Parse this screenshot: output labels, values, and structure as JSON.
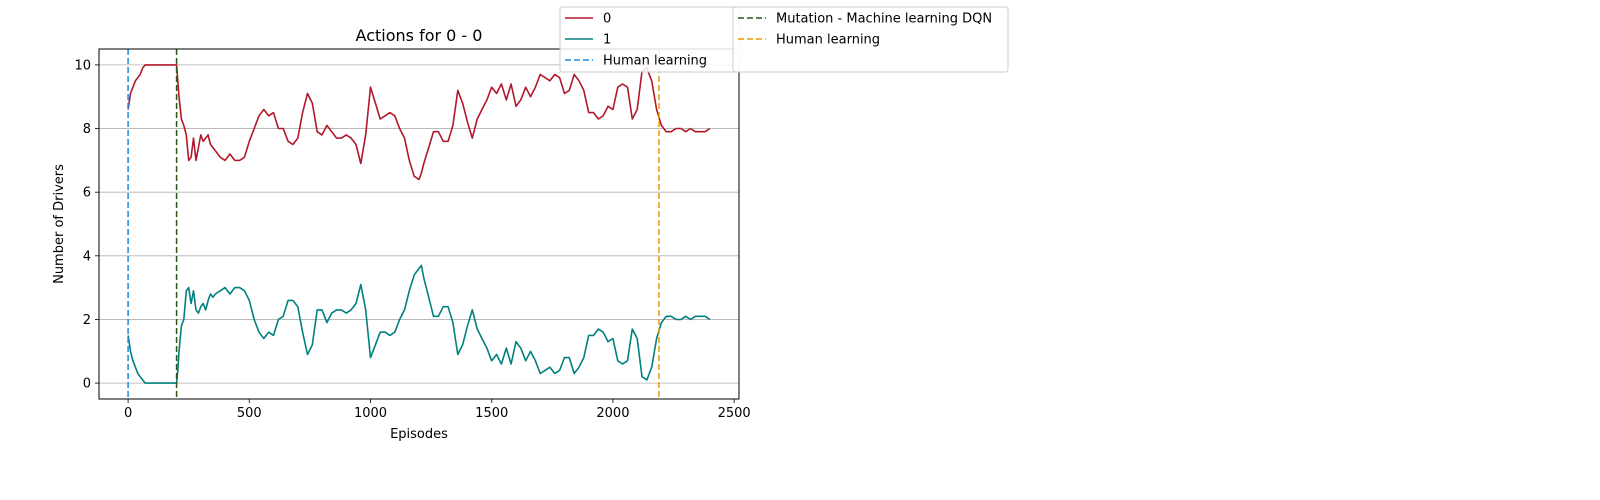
{
  "chart_data": {
    "type": "line",
    "title": "Actions for 0 - 0",
    "xlabel": "Episodes",
    "ylabel": "Number of Drivers",
    "xlim": [
      -120,
      2520
    ],
    "ylim": [
      -0.5,
      10.5
    ],
    "xticks": [
      0,
      500,
      1000,
      1500,
      2000,
      2500
    ],
    "yticks": [
      0,
      2,
      4,
      6,
      8,
      10
    ],
    "grid": "horizontal",
    "legend_placement": "top-right",
    "series": [
      {
        "name": "0",
        "color": "#b2182b",
        "x": [
          0,
          10,
          20,
          30,
          40,
          50,
          60,
          70,
          80,
          100,
          150,
          195,
          200,
          205,
          210,
          220,
          230,
          240,
          250,
          260,
          270,
          280,
          290,
          300,
          310,
          320,
          330,
          340,
          350,
          360,
          380,
          400,
          420,
          440,
          460,
          480,
          500,
          520,
          540,
          560,
          580,
          600,
          620,
          640,
          660,
          680,
          700,
          720,
          740,
          760,
          780,
          800,
          820,
          840,
          860,
          880,
          900,
          920,
          940,
          960,
          980,
          1000,
          1020,
          1040,
          1060,
          1080,
          1100,
          1120,
          1140,
          1160,
          1180,
          1200,
          1210,
          1220,
          1240,
          1260,
          1280,
          1300,
          1320,
          1340,
          1360,
          1380,
          1400,
          1420,
          1440,
          1460,
          1480,
          1500,
          1520,
          1540,
          1560,
          1580,
          1600,
          1620,
          1640,
          1660,
          1680,
          1700,
          1720,
          1740,
          1760,
          1780,
          1800,
          1820,
          1840,
          1860,
          1880,
          1900,
          1920,
          1940,
          1960,
          1980,
          2000,
          2020,
          2040,
          2060,
          2080,
          2100,
          2120,
          2140,
          2160,
          2180,
          2200,
          2220,
          2240,
          2260,
          2280,
          2300,
          2320,
          2340,
          2360,
          2380,
          2400
        ],
        "values": [
          8.6,
          9.1,
          9.3,
          9.5,
          9.6,
          9.7,
          9.9,
          10.0,
          10.0,
          10.0,
          10.0,
          10.0,
          10.0,
          9.5,
          9.0,
          8.3,
          8.1,
          7.8,
          7.0,
          7.1,
          7.7,
          7.0,
          7.4,
          7.8,
          7.6,
          7.7,
          7.8,
          7.5,
          7.4,
          7.3,
          7.1,
          7.0,
          7.2,
          7.0,
          7.0,
          7.1,
          7.6,
          8.0,
          8.4,
          8.6,
          8.4,
          8.5,
          8.0,
          8.0,
          7.6,
          7.5,
          7.7,
          8.5,
          9.1,
          8.8,
          7.9,
          7.8,
          8.1,
          7.9,
          7.7,
          7.7,
          7.8,
          7.7,
          7.5,
          6.9,
          7.8,
          9.3,
          8.8,
          8.3,
          8.4,
          8.5,
          8.4,
          8.0,
          7.7,
          7.0,
          6.5,
          6.4,
          6.6,
          6.9,
          7.4,
          7.9,
          7.9,
          7.6,
          7.6,
          8.1,
          9.2,
          8.8,
          8.2,
          7.7,
          8.3,
          8.6,
          8.9,
          9.3,
          9.1,
          9.4,
          8.9,
          9.4,
          8.7,
          8.9,
          9.3,
          9.0,
          9.3,
          9.7,
          9.6,
          9.5,
          9.7,
          9.6,
          9.1,
          9.2,
          9.7,
          9.5,
          9.2,
          8.5,
          8.5,
          8.3,
          8.4,
          8.7,
          8.6,
          9.3,
          9.4,
          9.3,
          8.3,
          8.6,
          9.8,
          9.9,
          9.5,
          8.6,
          8.1,
          7.9,
          7.9,
          8.0,
          8.0,
          7.9,
          8.0,
          7.9,
          7.9,
          7.9,
          8.0
        ]
      },
      {
        "name": "1",
        "color": "#00817f",
        "x": [
          0,
          10,
          20,
          30,
          40,
          50,
          60,
          70,
          80,
          100,
          150,
          195,
          200,
          205,
          210,
          220,
          230,
          240,
          250,
          260,
          270,
          280,
          290,
          300,
          310,
          320,
          330,
          340,
          350,
          360,
          380,
          400,
          420,
          440,
          460,
          480,
          500,
          520,
          540,
          560,
          580,
          600,
          620,
          640,
          660,
          680,
          700,
          720,
          740,
          760,
          780,
          800,
          820,
          840,
          860,
          880,
          900,
          920,
          940,
          960,
          980,
          1000,
          1020,
          1040,
          1060,
          1080,
          1100,
          1120,
          1140,
          1160,
          1180,
          1200,
          1210,
          1220,
          1240,
          1260,
          1280,
          1300,
          1320,
          1340,
          1360,
          1380,
          1400,
          1420,
          1440,
          1460,
          1480,
          1500,
          1520,
          1540,
          1560,
          1580,
          1600,
          1620,
          1640,
          1660,
          1680,
          1700,
          1720,
          1740,
          1760,
          1780,
          1800,
          1820,
          1840,
          1860,
          1880,
          1900,
          1920,
          1940,
          1960,
          1980,
          2000,
          2020,
          2040,
          2060,
          2080,
          2100,
          2120,
          2140,
          2160,
          2180,
          2200,
          2220,
          2240,
          2260,
          2280,
          2300,
          2320,
          2340,
          2360,
          2380,
          2400
        ],
        "values": [
          1.5,
          1.0,
          0.7,
          0.5,
          0.3,
          0.2,
          0.1,
          0.0,
          0.0,
          0.0,
          0.0,
          0.0,
          0.0,
          0.4,
          1.0,
          1.8,
          2.0,
          2.9,
          3.0,
          2.5,
          2.9,
          2.3,
          2.2,
          2.4,
          2.5,
          2.3,
          2.6,
          2.8,
          2.7,
          2.8,
          2.9,
          3.0,
          2.8,
          3.0,
          3.0,
          2.9,
          2.6,
          2.0,
          1.6,
          1.4,
          1.6,
          1.5,
          2.0,
          2.1,
          2.6,
          2.6,
          2.4,
          1.6,
          0.9,
          1.2,
          2.3,
          2.3,
          1.9,
          2.2,
          2.3,
          2.3,
          2.2,
          2.3,
          2.5,
          3.1,
          2.3,
          0.8,
          1.2,
          1.6,
          1.6,
          1.5,
          1.6,
          2.0,
          2.3,
          2.9,
          3.4,
          3.6,
          3.7,
          3.3,
          2.7,
          2.1,
          2.1,
          2.4,
          2.4,
          1.9,
          0.9,
          1.2,
          1.8,
          2.3,
          1.7,
          1.4,
          1.1,
          0.7,
          0.9,
          0.6,
          1.1,
          0.6,
          1.3,
          1.1,
          0.7,
          1.0,
          0.7,
          0.3,
          0.4,
          0.5,
          0.3,
          0.4,
          0.8,
          0.8,
          0.3,
          0.5,
          0.8,
          1.5,
          1.5,
          1.7,
          1.6,
          1.3,
          1.4,
          0.7,
          0.6,
          0.7,
          1.7,
          1.4,
          0.2,
          0.1,
          0.5,
          1.4,
          1.9,
          2.1,
          2.1,
          2.0,
          2.0,
          2.1,
          2.0,
          2.1,
          2.1,
          2.1,
          2.0
        ]
      }
    ],
    "vlines": [
      {
        "name": "Human learning",
        "x": 0,
        "color": "#1e88e5"
      },
      {
        "name": "Mutation - Machine learning DQN",
        "x": 200,
        "color": "#2e5417"
      },
      {
        "name": "Human learning",
        "x": 2190,
        "color": "#e89a00"
      }
    ],
    "legend_main": [
      {
        "label": "0",
        "color": "#b2182b",
        "dashed": false
      },
      {
        "label": "1",
        "color": "#00817f",
        "dashed": false
      },
      {
        "label": "Human learning",
        "color": "#1e88e5",
        "dashed": true
      }
    ],
    "legend_secondary": [
      {
        "label": "Mutation - Machine learning DQN",
        "color": "#2e5417",
        "dashed": true
      },
      {
        "label": "Human learning",
        "color": "#e89a00",
        "dashed": true
      }
    ]
  }
}
